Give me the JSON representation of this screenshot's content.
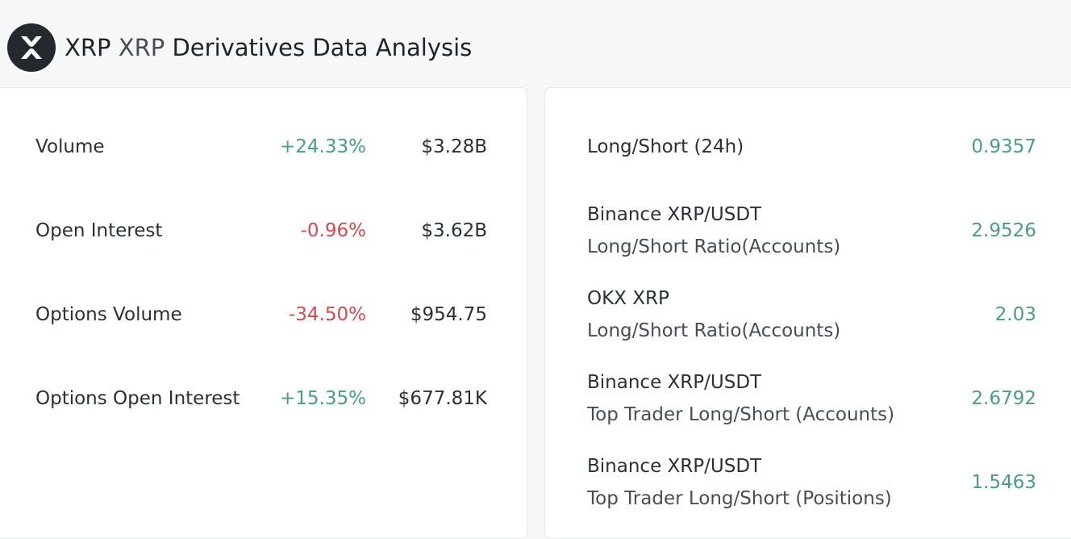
{
  "header": {
    "symbol": "XRP",
    "name": "XRP",
    "title": "Derivatives Data Analysis",
    "logo_icon": "xrp-logo-icon"
  },
  "left_panel": {
    "rows": [
      {
        "label": "Volume",
        "change": "+24.33%",
        "value": "$3.28B"
      },
      {
        "label": "Open Interest",
        "change": "-0.96%",
        "value": "$3.62B"
      },
      {
        "label": "Options Volume",
        "change": "-34.50%",
        "value": "$954.75"
      },
      {
        "label": "Options Open Interest",
        "change": "+15.35%",
        "value": "$677.81K"
      }
    ]
  },
  "right_panel": {
    "rows": [
      {
        "line1": "Long/Short (24h)",
        "line2": "",
        "value": "0.9357"
      },
      {
        "line1": "Binance XRP/USDT",
        "line2": "Long/Short Ratio(Accounts)",
        "value": "2.9526"
      },
      {
        "line1": "OKX XRP",
        "line2": "Long/Short Ratio(Accounts)",
        "value": "2.03"
      },
      {
        "line1": "Binance XRP/USDT",
        "line2": "Top Trader Long/Short (Accounts)",
        "value": "2.6792"
      },
      {
        "line1": "Binance XRP/USDT",
        "line2": "Top Trader Long/Short (Positions)",
        "value": "1.5463"
      }
    ]
  },
  "colors": {
    "positive": "#4a9e80",
    "negative": "#d9484e",
    "logo_bg": "#23292f"
  }
}
